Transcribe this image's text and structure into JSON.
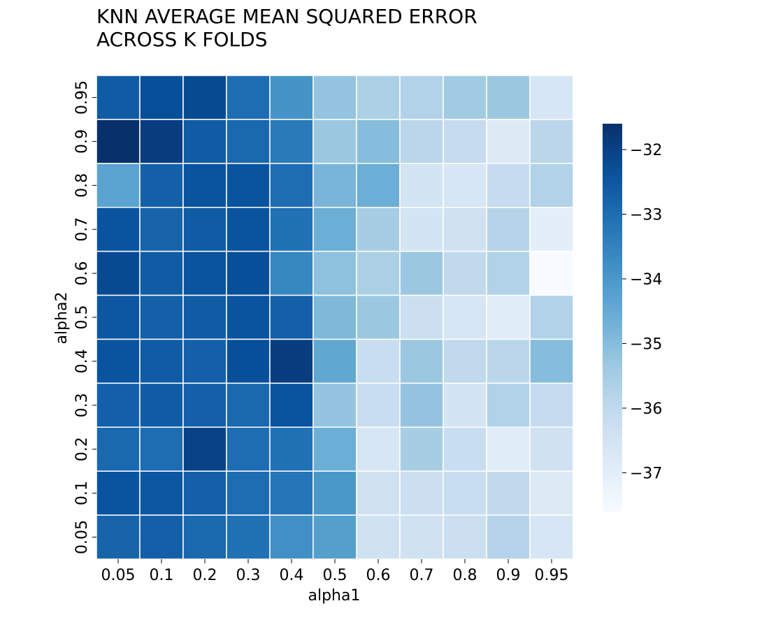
{
  "chart_data": {
    "type": "heatmap",
    "title_lines": [
      "KNN AVERAGE MEAN SQUARED ERROR",
      "ACROSS K FOLDS"
    ],
    "xlabel": "alpha1",
    "ylabel": "alpha2",
    "x_categories": [
      "0.05",
      "0.1",
      "0.2",
      "0.3",
      "0.4",
      "0.5",
      "0.6",
      "0.7",
      "0.8",
      "0.9",
      "0.95"
    ],
    "y_categories": [
      "0.95",
      "0.9",
      "0.8",
      "0.7",
      "0.6",
      "0.5",
      "0.4",
      "0.3",
      "0.2",
      "0.1",
      "0.05"
    ],
    "values": [
      [
        -32.6,
        -32.3,
        -32.2,
        -33.0,
        -33.9,
        -35.2,
        -35.6,
        -35.7,
        -35.4,
        -35.3,
        -36.6
      ],
      [
        -31.6,
        -31.9,
        -32.6,
        -32.9,
        -33.3,
        -35.3,
        -35.0,
        -35.9,
        -36.1,
        -36.8,
        -35.9
      ],
      [
        -34.3,
        -32.7,
        -32.4,
        -32.4,
        -33.0,
        -34.8,
        -34.6,
        -36.5,
        -36.6,
        -36.1,
        -35.7
      ],
      [
        -32.4,
        -32.8,
        -32.6,
        -32.4,
        -33.1,
        -34.6,
        -35.5,
        -36.5,
        -36.4,
        -35.8,
        -37.0
      ],
      [
        -32.2,
        -32.6,
        -32.4,
        -32.3,
        -33.6,
        -35.1,
        -35.6,
        -35.3,
        -36.0,
        -35.7,
        -37.6
      ],
      [
        -32.5,
        -32.7,
        -32.6,
        -32.4,
        -32.7,
        -34.9,
        -35.3,
        -36.3,
        -36.6,
        -36.9,
        -35.7
      ],
      [
        -32.4,
        -32.6,
        -32.7,
        -32.3,
        -31.9,
        -34.4,
        -36.2,
        -35.3,
        -36.0,
        -35.9,
        -35.0
      ],
      [
        -32.7,
        -32.6,
        -32.7,
        -32.9,
        -32.4,
        -35.2,
        -36.2,
        -35.2,
        -36.5,
        -35.7,
        -36.1
      ],
      [
        -32.9,
        -33.0,
        -32.0,
        -33.0,
        -33.1,
        -34.6,
        -36.6,
        -35.5,
        -36.2,
        -36.9,
        -36.4
      ],
      [
        -32.4,
        -32.5,
        -32.7,
        -33.0,
        -33.2,
        -34.0,
        -36.4,
        -36.3,
        -36.2,
        -36.0,
        -36.8
      ],
      [
        -32.8,
        -32.7,
        -32.9,
        -33.1,
        -33.8,
        -34.2,
        -36.4,
        -36.4,
        -36.3,
        -35.8,
        -36.6
      ]
    ],
    "vmin": -37.6,
    "vmax": -31.6,
    "colormap": "Blues",
    "colorbar": {
      "ticks": [
        "−32",
        "−33",
        "−34",
        "−35",
        "−36",
        "−37"
      ],
      "tick_values": [
        -32,
        -33,
        -34,
        -35,
        -36,
        -37
      ]
    },
    "grid_line_color": "#ffffff"
  }
}
